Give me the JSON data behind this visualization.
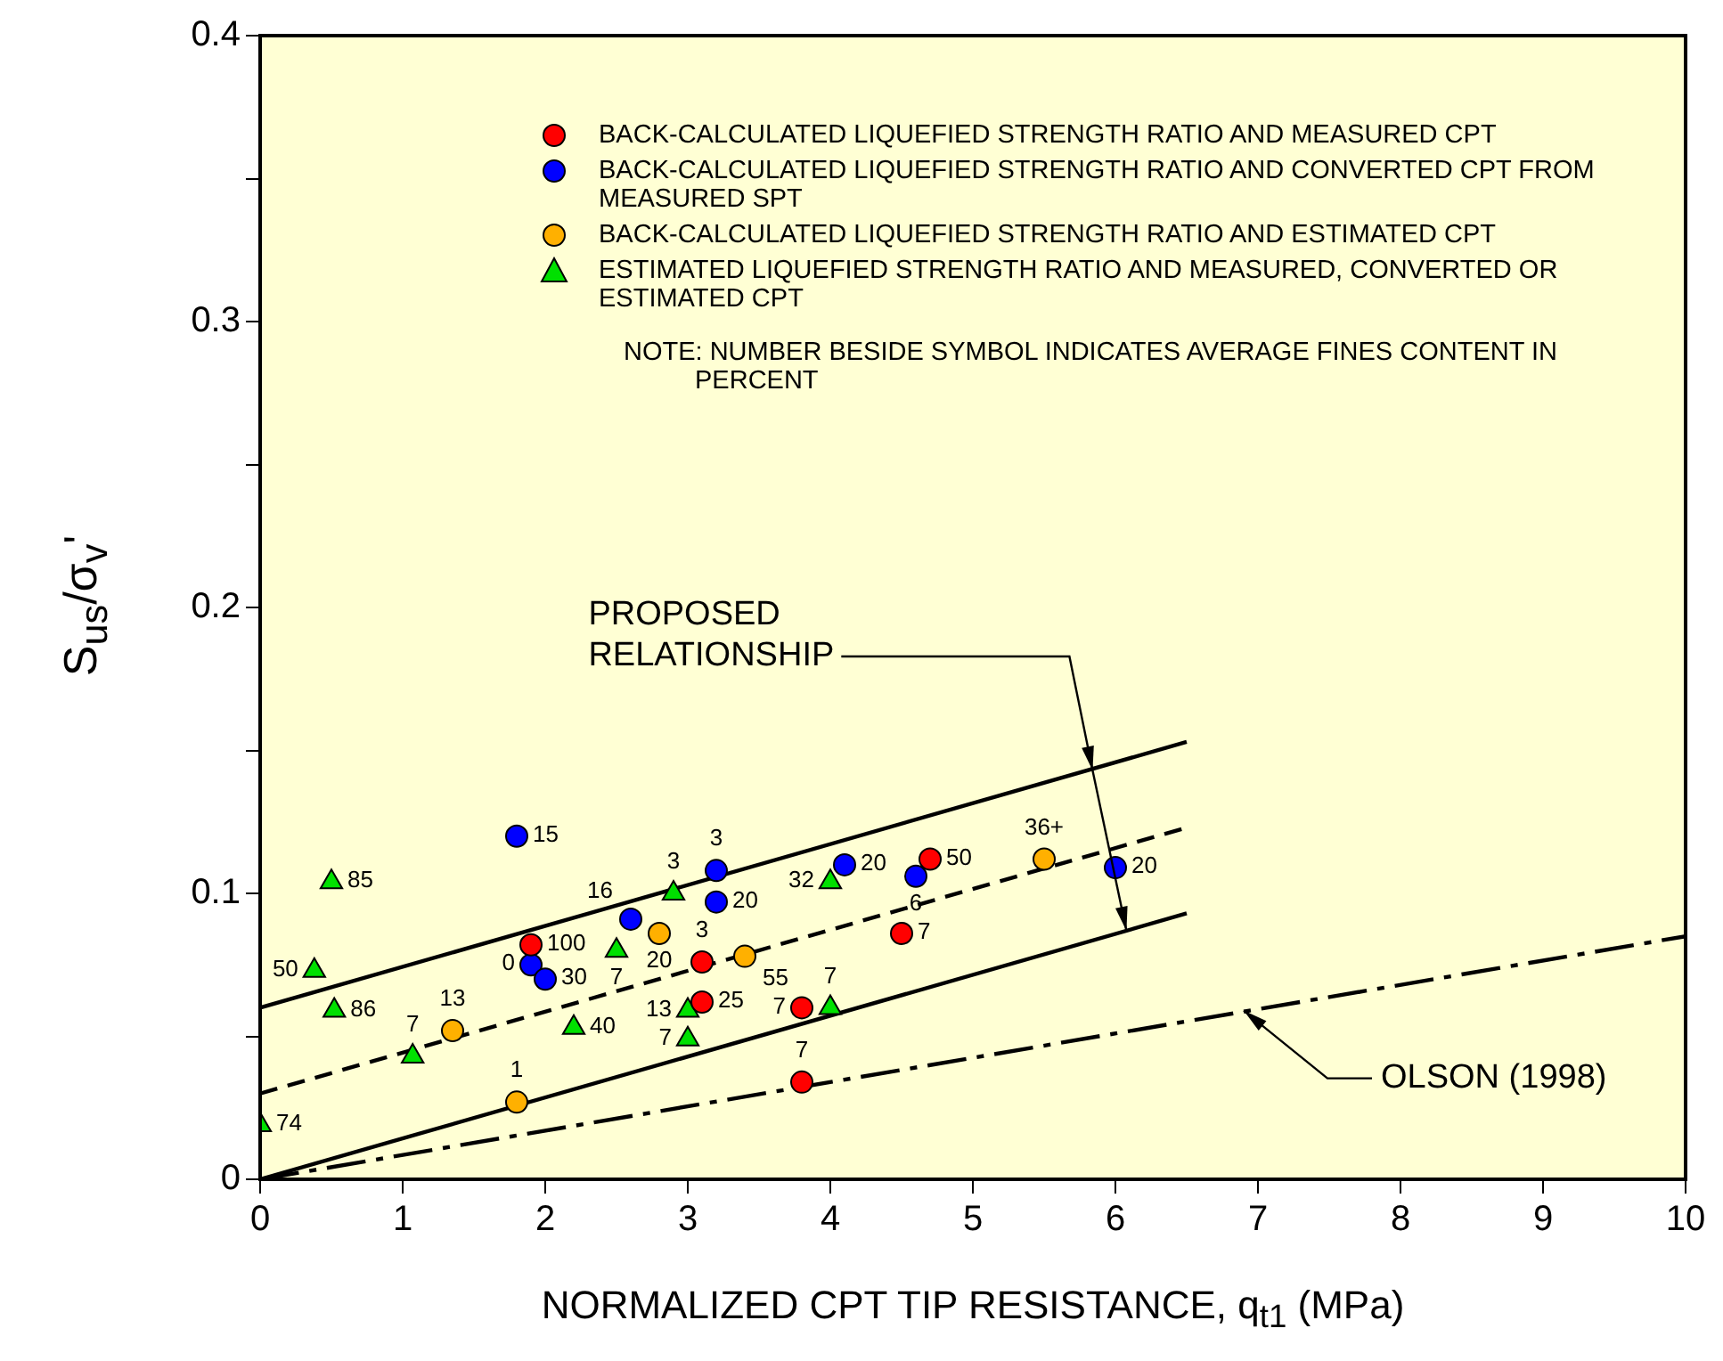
{
  "chart_data": {
    "type": "scatter",
    "xlabel": "NORMALIZED CPT TIP RESISTANCE, q$_{t1}$ (MPa)",
    "ylabel": "S$_{us}$/σ$_{v}$'",
    "xlim": [
      0,
      10
    ],
    "xticks": [
      0,
      1,
      2,
      3,
      4,
      5,
      6,
      7,
      8,
      9,
      10
    ],
    "ylim": [
      0,
      0.4
    ],
    "yticks": [
      0,
      {
        "value": 0.05,
        "label": null
      },
      0.1,
      {
        "value": 0.15,
        "label": null
      },
      0.2,
      {
        "value": 0.25,
        "label": null
      },
      0.3,
      {
        "value": 0.35,
        "label": null
      },
      0.4
    ],
    "grid": false,
    "legend": "top right",
    "series": [
      {
        "name": "BACK-CALCULATED LIQUEFIED STRENGTH RATIO AND MEASURED CPT",
        "color": "#ff0000",
        "marker": "circle",
        "x": [
          1.9,
          3.1,
          3.1,
          3.8,
          3.8,
          4.5,
          4.7
        ],
        "values": [
          0.082,
          0.076,
          0.062,
          0.06,
          0.034,
          0.086,
          0.112
        ]
      },
      {
        "name": "BACK-CALCULATED LIQUEFIED STRENGTH RATIO AND CONVERTED CPT FROM MEASURED SPT",
        "color": "#0000ff",
        "marker": "circle",
        "x": [
          1.8,
          1.9,
          2.0,
          2.6,
          3.2,
          3.2,
          4.1,
          4.6,
          6.0
        ],
        "values": [
          0.12,
          0.075,
          0.07,
          0.091,
          0.108,
          0.097,
          0.11,
          0.106,
          0.109
        ]
      },
      {
        "name": "BACK-CALCULATED LIQUEFIED STRENGTH RATIO AND ESTIMATED CPT",
        "color": "#ffb000",
        "marker": "circle",
        "x": [
          1.35,
          1.8,
          2.8,
          3.4,
          5.5
        ],
        "values": [
          0.052,
          0.027,
          0.086,
          0.078,
          0.112
        ]
      },
      {
        "name": "ESTIMATED LIQUEFIED STRENGTH RATIO AND MEASURED, CONVERTED OR ESTIMATED CPT",
        "color": "#00e000",
        "marker": "triangle",
        "x": [
          0.5,
          0.38,
          0.52,
          0,
          1.07,
          2.2,
          2.5,
          2.9,
          3.0,
          3.0,
          4.0,
          4.0
        ],
        "values": [
          0.104,
          0.073,
          0.059,
          0.019,
          0.043,
          0.053,
          0.08,
          0.1,
          0.059,
          0.049,
          0.104,
          0.06
        ]
      },
      {
        "type": "line",
        "color": "#000000",
        "marker": "none",
        "line_style": "solid",
        "x": [
          0,
          6.5
        ],
        "values": [
          0.06,
          0.153
        ]
      },
      {
        "type": "line",
        "color": "#000000",
        "marker": "none",
        "line_style": "dashed",
        "x": [
          0,
          6.5
        ],
        "values": [
          0.03,
          0.123
        ]
      },
      {
        "type": "line",
        "color": "#000000",
        "marker": "none",
        "line_style": "solid",
        "x": [
          0,
          6.5
        ],
        "values": [
          0,
          0.093
        ]
      },
      {
        "type": "line",
        "color": "#000000",
        "marker": "none",
        "line_style": "dashdot",
        "x": [
          0,
          10
        ],
        "values": [
          0,
          0.085
        ]
      }
    ],
    "annotations": [
      "NOTE: NUMBER BESIDE SYMBOL INDICATES AVERAGE FINES CONTENT IN PERCENT",
      {
        "text": "PROPOSED RELATIONSHIP",
        "x": 5.84,
        "y": 0.143
      },
      {
        "text": "OLSON (1998)",
        "x": 6.9,
        "y": 0.059
      },
      {
        "text": "100",
        "x": 1.9,
        "y": 0.082
      },
      {
        "text": "3",
        "x": 3.1,
        "y": 0.076
      },
      {
        "text": "25",
        "x": 3.1,
        "y": 0.062
      },
      {
        "text": "7",
        "x": 3.8,
        "y": 0.06
      },
      {
        "text": "7",
        "x": 3.8,
        "y": 0.034
      },
      {
        "text": "7",
        "x": 4.5,
        "y": 0.086
      },
      {
        "text": "50",
        "x": 4.7,
        "y": 0.112
      },
      {
        "text": "15",
        "x": 1.8,
        "y": 0.12
      },
      {
        "text": "0",
        "x": 1.9,
        "y": 0.075
      },
      {
        "text": "30",
        "x": 2.0,
        "y": 0.07
      },
      {
        "text": "16",
        "x": 2.6,
        "y": 0.091
      },
      {
        "text": "3",
        "x": 3.2,
        "y": 0.108
      },
      {
        "text": "20",
        "x": 3.2,
        "y": 0.097
      },
      {
        "text": "20",
        "x": 4.1,
        "y": 0.11
      },
      {
        "text": "6",
        "x": 4.6,
        "y": 0.106
      },
      {
        "text": "20",
        "x": 6.0,
        "y": 0.109
      },
      {
        "text": "13",
        "x": 1.35,
        "y": 0.052
      },
      {
        "text": "1",
        "x": 1.8,
        "y": 0.027
      },
      {
        "text": "20",
        "x": 2.8,
        "y": 0.086
      },
      {
        "text": "55",
        "x": 3.4,
        "y": 0.078
      },
      {
        "text": "36+",
        "x": 5.5,
        "y": 0.112
      },
      {
        "text": "85",
        "x": 0.5,
        "y": 0.104
      },
      {
        "text": "50",
        "x": 0.38,
        "y": 0.073
      },
      {
        "text": "86",
        "x": 0.52,
        "y": 0.059
      },
      {
        "text": "74",
        "x": 0,
        "y": 0.019
      },
      {
        "text": "7",
        "x": 1.07,
        "y": 0.043
      },
      {
        "text": "40",
        "x": 2.2,
        "y": 0.053
      },
      {
        "text": "7",
        "x": 2.5,
        "y": 0.08
      },
      {
        "text": "3",
        "x": 2.9,
        "y": 0.1
      },
      {
        "text": "13",
        "x": 3.0,
        "y": 0.059
      },
      {
        "text": "7",
        "x": 3.0,
        "y": 0.049
      },
      {
        "text": "32",
        "x": 4.0,
        "y": 0.104
      },
      {
        "text": "7",
        "x": 4.0,
        "y": 0.06
      }
    ]
  }
}
